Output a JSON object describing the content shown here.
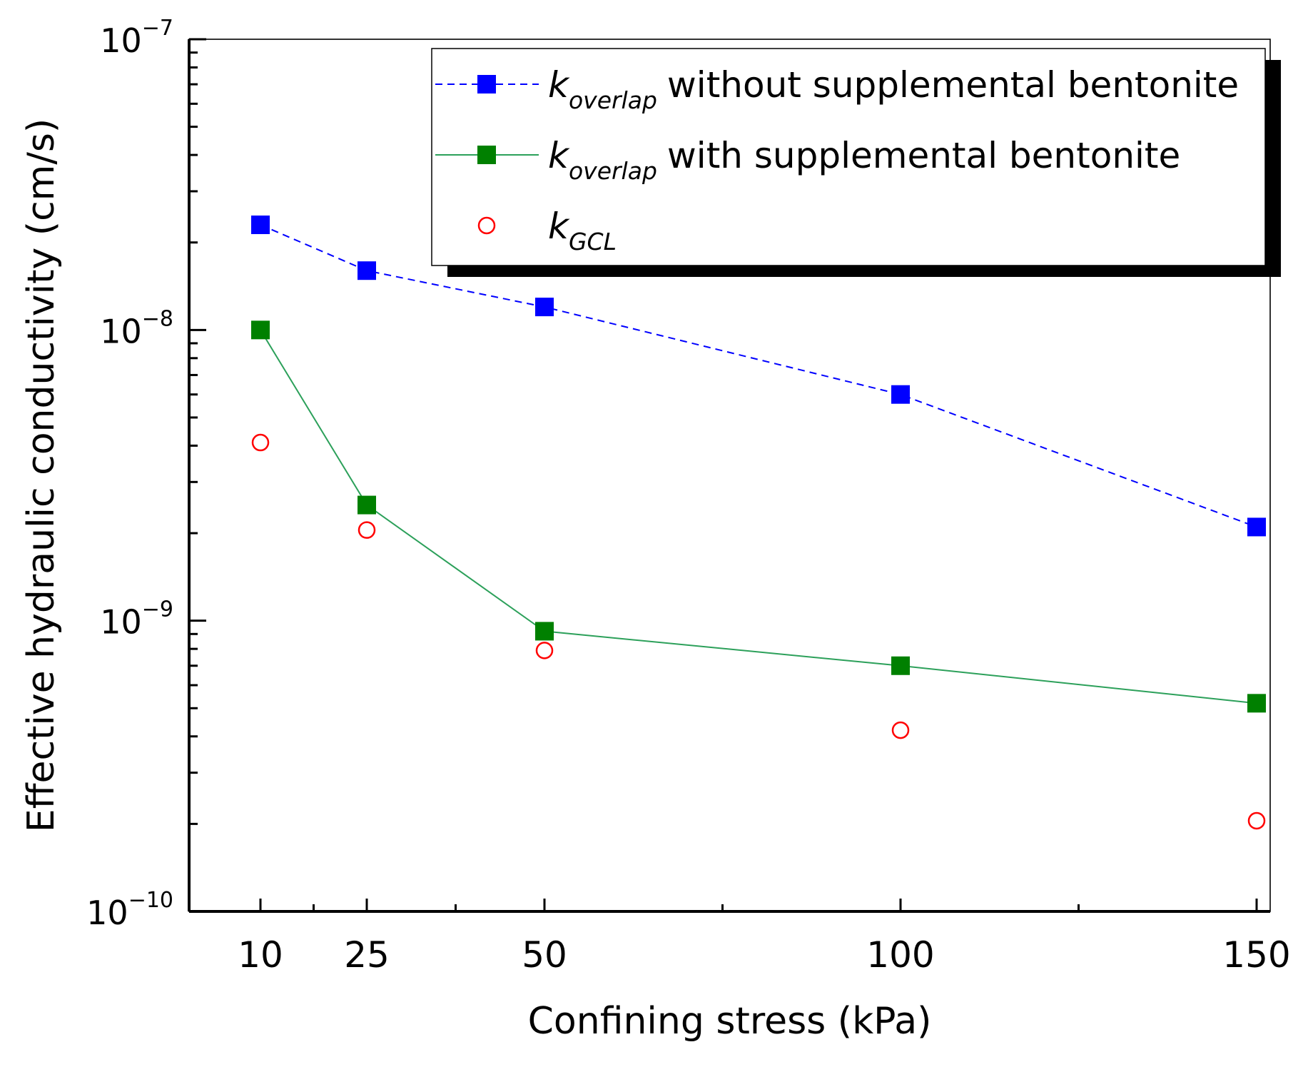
{
  "chart_data": {
    "type": "scatter",
    "title": "",
    "xlabel": "Confining stress (kPa)",
    "ylabel": "Effective hydraulic conductivity (cm/s)",
    "yscale": "log",
    "ylim": [
      1e-10,
      1e-07
    ],
    "xlim": [
      0,
      152
    ],
    "x_ticks": [
      10,
      25,
      50,
      100,
      150
    ],
    "x_minor_ticks": [
      17.5,
      37.5,
      75,
      125
    ],
    "y_ticks": [
      {
        "base": "10",
        "exp": "−10",
        "value": 1e-10
      },
      {
        "base": "10",
        "exp": "−9",
        "value": 1e-09
      },
      {
        "base": "10",
        "exp": "−8",
        "value": 1e-08
      },
      {
        "base": "10",
        "exp": "−7",
        "value": 1e-07
      }
    ],
    "grid": false,
    "legend_position": "top-right",
    "series": [
      {
        "name": "without supplemental bentonite",
        "symbol_base": "k",
        "symbol_sub": "overlap",
        "marker": "filled-square",
        "line": "dashed",
        "color": "#0000ff",
        "x": [
          10,
          25,
          50,
          100,
          150
        ],
        "y": [
          2.3e-08,
          1.6e-08,
          1.2e-08,
          6e-09,
          2.1e-09
        ]
      },
      {
        "name": "with supplemental bentonite",
        "symbol_base": "k",
        "symbol_sub": "overlap",
        "marker": "filled-square",
        "line": "solid",
        "color": "#008000",
        "line_color": "#2ca05a",
        "x": [
          10,
          25,
          50,
          100,
          150
        ],
        "y": [
          1e-08,
          2.5e-09,
          9.2e-10,
          7e-10,
          5.2e-10
        ]
      },
      {
        "name": "",
        "symbol_base": "k",
        "symbol_sub": "GCL",
        "marker": "open-circle",
        "line": "none",
        "color": "#ff0000",
        "x": [
          10,
          25,
          50,
          100,
          150
        ],
        "y": [
          4.1e-09,
          2.05e-09,
          7.9e-10,
          4.2e-10,
          2.05e-10
        ]
      }
    ]
  }
}
